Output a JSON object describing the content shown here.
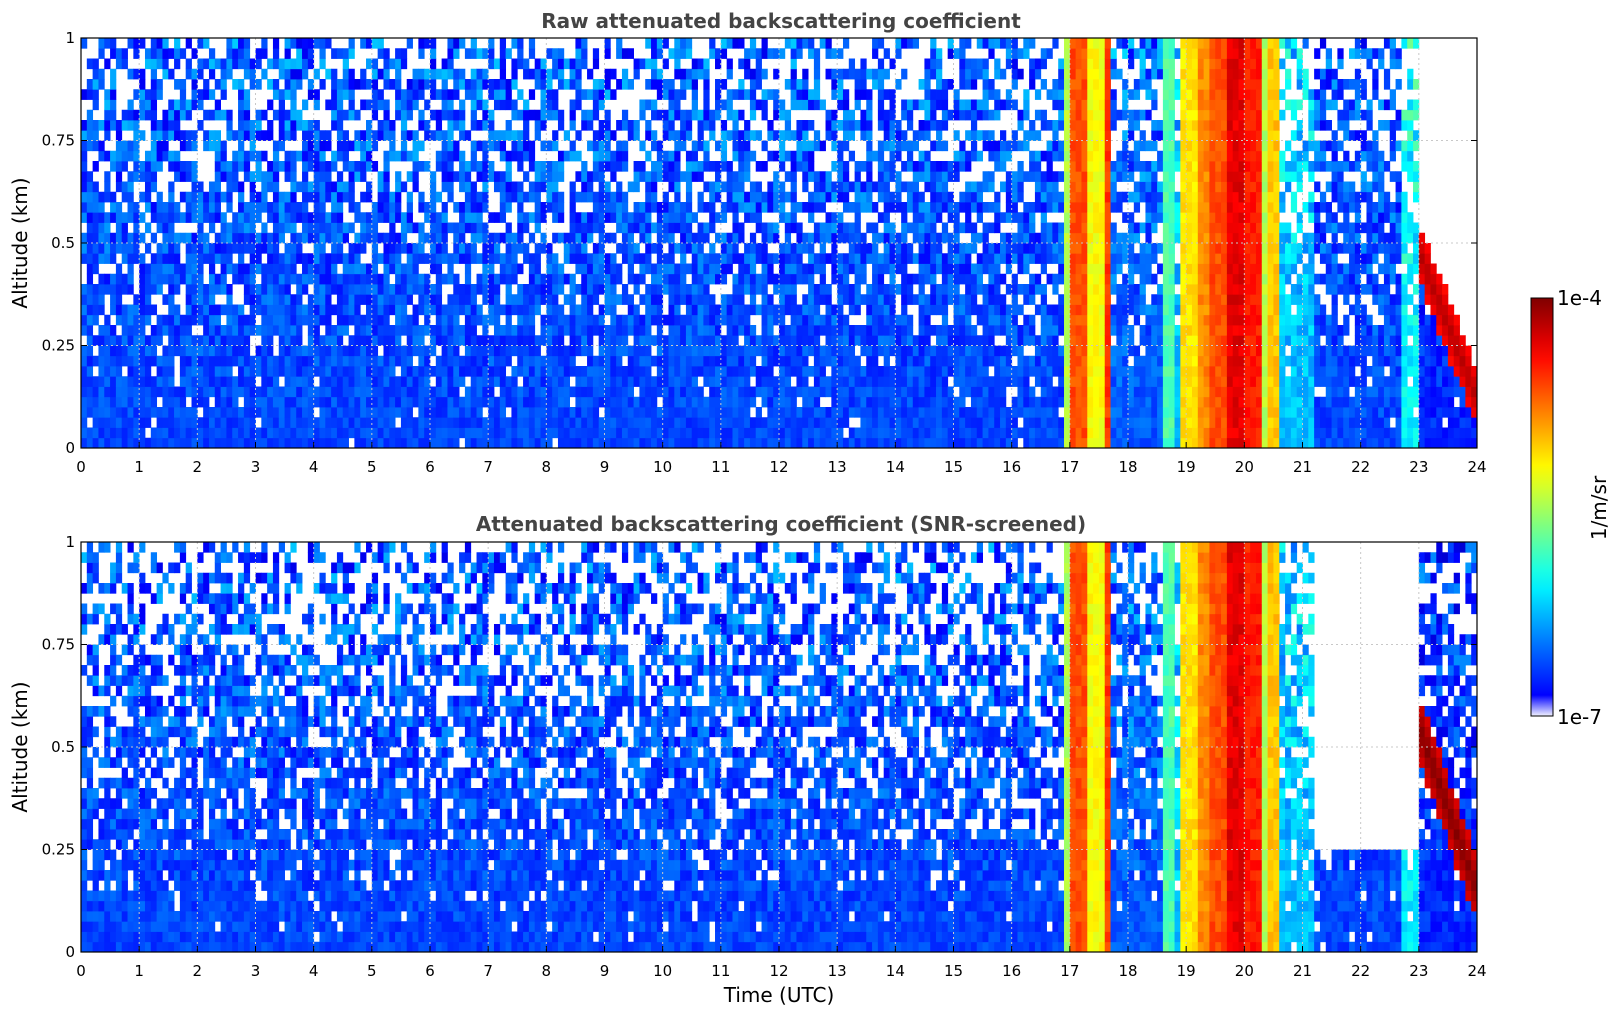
{
  "chart_data": [
    {
      "type": "heatmap",
      "title": "Raw attenuated backscattering coefficient",
      "xlabel": "",
      "ylabel": "Altitude (km)",
      "xlim": [
        0,
        24
      ],
      "ylim": [
        0,
        1
      ],
      "xticks": [
        "0",
        "1",
        "2",
        "3",
        "4",
        "5",
        "6",
        "7",
        "8",
        "9",
        "10",
        "11",
        "12",
        "13",
        "14",
        "15",
        "16",
        "17",
        "18",
        "19",
        "20",
        "21",
        "22",
        "23",
        "24"
      ],
      "yticks": [
        "0",
        "0.25",
        "0.5",
        "0.75",
        "1"
      ],
      "grid": true,
      "colormap": "jet",
      "screened": false,
      "bands": [
        {
          "x0": 0,
          "x1": 16.9,
          "level": 0.18
        },
        {
          "x0": 16.9,
          "x1": 17.05,
          "level": 0.55
        },
        {
          "x0": 17.05,
          "x1": 17.3,
          "level": 0.8
        },
        {
          "x0": 17.3,
          "x1": 17.55,
          "level": 0.62
        },
        {
          "x0": 17.55,
          "x1": 17.7,
          "level": 0.82
        },
        {
          "x0": 17.7,
          "x1": 18.6,
          "level": 0.2
        },
        {
          "x0": 18.6,
          "x1": 18.8,
          "level": 0.45
        },
        {
          "x0": 18.8,
          "x1": 18.95,
          "level": 0.3
        },
        {
          "x0": 18.95,
          "x1": 19.2,
          "level": 0.65
        },
        {
          "x0": 19.2,
          "x1": 19.45,
          "level": 0.74
        },
        {
          "x0": 19.45,
          "x1": 19.7,
          "level": 0.8
        },
        {
          "x0": 19.7,
          "x1": 20.05,
          "level": 0.9
        },
        {
          "x0": 20.05,
          "x1": 20.3,
          "level": 0.85
        },
        {
          "x0": 20.3,
          "x1": 20.45,
          "level": 0.55
        },
        {
          "x0": 20.45,
          "x1": 20.65,
          "level": 0.68
        },
        {
          "x0": 20.65,
          "x1": 21.2,
          "level": 0.3
        },
        {
          "x0": 21.2,
          "x1": 22.7,
          "level": 0.18
        },
        {
          "x0": 22.7,
          "x1": 23.0,
          "level": 0.35
        },
        {
          "x0": 23.0,
          "x1": 24,
          "level": 0.15
        }
      ],
      "features": [
        {
          "kind": "layer",
          "x0": 23.0,
          "x1": 24,
          "y_start": 0.48,
          "y_end": 0.12,
          "thickness": 0.14,
          "level": 0.95
        }
      ]
    },
    {
      "type": "heatmap",
      "title": "Attenuated backscattering coefficient (SNR-screened)",
      "xlabel": "Time (UTC)",
      "ylabel": "Altitude (km)",
      "xlim": [
        0,
        24
      ],
      "ylim": [
        0,
        1
      ],
      "xticks": [
        "0",
        "1",
        "2",
        "3",
        "4",
        "5",
        "6",
        "7",
        "8",
        "9",
        "10",
        "11",
        "12",
        "13",
        "14",
        "15",
        "16",
        "17",
        "18",
        "19",
        "20",
        "21",
        "22",
        "23",
        "24"
      ],
      "yticks": [
        "0",
        "0.25",
        "0.5",
        "0.75",
        "1"
      ],
      "grid": true,
      "colormap": "jet",
      "screened": true,
      "bands": [
        {
          "x0": 0,
          "x1": 16.9,
          "level": 0.18
        },
        {
          "x0": 16.9,
          "x1": 17.05,
          "level": 0.55
        },
        {
          "x0": 17.05,
          "x1": 17.3,
          "level": 0.8
        },
        {
          "x0": 17.3,
          "x1": 17.55,
          "level": 0.62
        },
        {
          "x0": 17.55,
          "x1": 17.7,
          "level": 0.82
        },
        {
          "x0": 17.7,
          "x1": 18.6,
          "level": 0.2
        },
        {
          "x0": 18.6,
          "x1": 18.8,
          "level": 0.45
        },
        {
          "x0": 18.8,
          "x1": 18.95,
          "level": 0.3
        },
        {
          "x0": 18.95,
          "x1": 19.2,
          "level": 0.65
        },
        {
          "x0": 19.2,
          "x1": 19.45,
          "level": 0.74
        },
        {
          "x0": 19.45,
          "x1": 19.7,
          "level": 0.8
        },
        {
          "x0": 19.7,
          "x1": 20.05,
          "level": 0.9
        },
        {
          "x0": 20.05,
          "x1": 20.3,
          "level": 0.85
        },
        {
          "x0": 20.3,
          "x1": 20.45,
          "level": 0.55
        },
        {
          "x0": 20.45,
          "x1": 20.65,
          "level": 0.68
        },
        {
          "x0": 20.65,
          "x1": 21.2,
          "level": 0.3
        },
        {
          "x0": 21.2,
          "x1": 22.7,
          "level": 0.18
        },
        {
          "x0": 22.7,
          "x1": 23.0,
          "level": 0.35
        },
        {
          "x0": 23.0,
          "x1": 24,
          "level": 0.15
        }
      ],
      "features": [
        {
          "kind": "layer",
          "x0": 23.0,
          "x1": 24,
          "y_start": 0.55,
          "y_end": 0.15,
          "thickness": 0.16,
          "level": 1.0
        },
        {
          "kind": "cutoff",
          "x0": 21.2,
          "x1": 23.0,
          "y_top": 0.25
        }
      ]
    }
  ],
  "colorbar": {
    "label": "1/m/sr",
    "max_label": "1e-4",
    "min_label": "1e-7",
    "colormap": "jet"
  }
}
